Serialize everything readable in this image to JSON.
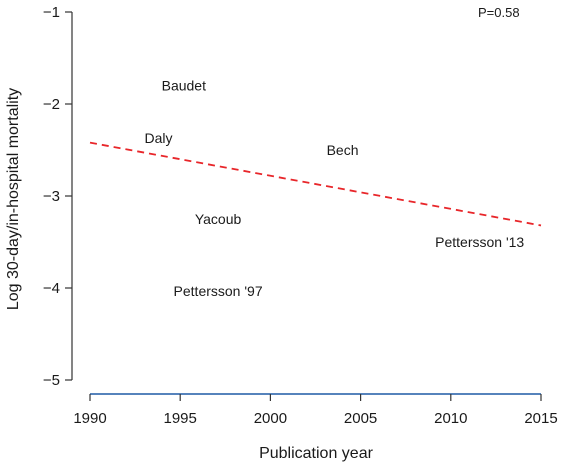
{
  "chart_data": {
    "type": "scatter",
    "title": "",
    "xlabel": "Publication year",
    "ylabel": "Log 30-day/in-hospital mortality",
    "xlim": [
      1990,
      2015
    ],
    "ylim": [
      -5,
      -1
    ],
    "xticks": [
      1990,
      1995,
      2000,
      2005,
      2010,
      2015
    ],
    "yticks": [
      -1,
      -2,
      -3,
      -4,
      -5
    ],
    "ytick_labels": [
      "−1",
      "−2",
      "−3",
      "−4",
      "−5"
    ],
    "grid": false,
    "annotation": "P=0.58",
    "points": [
      {
        "label": "Baudet",
        "x": 1995.2,
        "y": -1.8
      },
      {
        "label": "Daly",
        "x": 1993.8,
        "y": -2.37
      },
      {
        "label": "Bech",
        "x": 2004.0,
        "y": -2.5
      },
      {
        "label": "Yacoub",
        "x": 1997.1,
        "y": -3.25
      },
      {
        "label": "Pettersson '97",
        "x": 1997.1,
        "y": -4.03
      },
      {
        "label": "Pettersson '13",
        "x": 2011.6,
        "y": -3.5
      }
    ],
    "regression_line": {
      "style": "dashed",
      "color": "#e8262a",
      "x": [
        1990,
        2015
      ],
      "y": [
        -2.42,
        -3.32
      ]
    },
    "axis_color": "#1f5aa6"
  }
}
